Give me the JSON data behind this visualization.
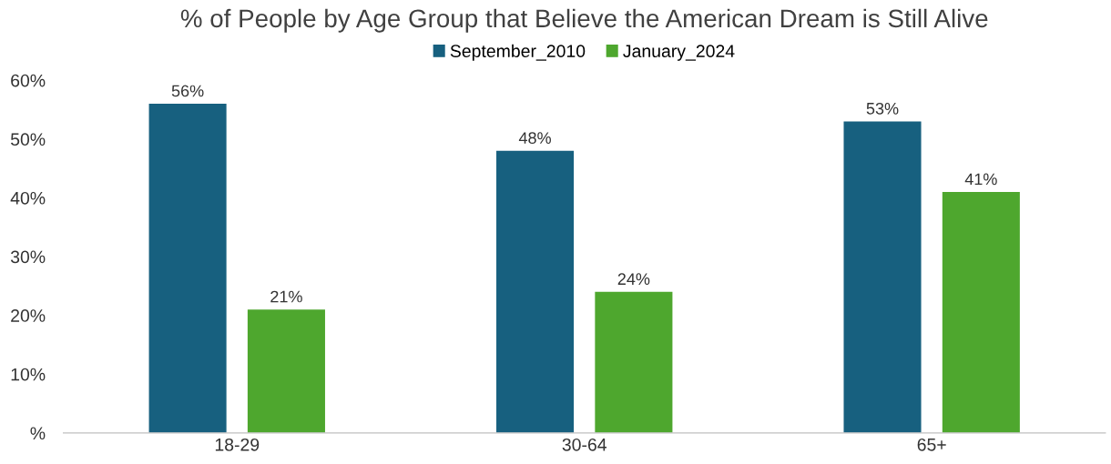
{
  "chart_data": {
    "type": "bar",
    "title": "% of People by Age Group that Believe the American Dream is Still Alive",
    "categories": [
      "18-29",
      "30-64",
      "65+"
    ],
    "series": [
      {
        "name": "September_2010",
        "color": "#17607f",
        "values": [
          56,
          48,
          53
        ],
        "value_labels": [
          "56%",
          "48%",
          "53%"
        ]
      },
      {
        "name": "January_2024",
        "color": "#4ea72e",
        "values": [
          21,
          24,
          41
        ],
        "value_labels": [
          "21%",
          "24%",
          "41%"
        ]
      }
    ],
    "ylim": [
      0,
      60
    ],
    "yticks": [
      {
        "value": 0,
        "label": "%"
      },
      {
        "value": 10,
        "label": "10%"
      },
      {
        "value": 20,
        "label": "20%"
      },
      {
        "value": 30,
        "label": "30%"
      },
      {
        "value": 40,
        "label": "40%"
      },
      {
        "value": 50,
        "label": "50%"
      },
      {
        "value": 60,
        "label": "60%"
      }
    ],
    "grid": false,
    "legend": "top"
  }
}
